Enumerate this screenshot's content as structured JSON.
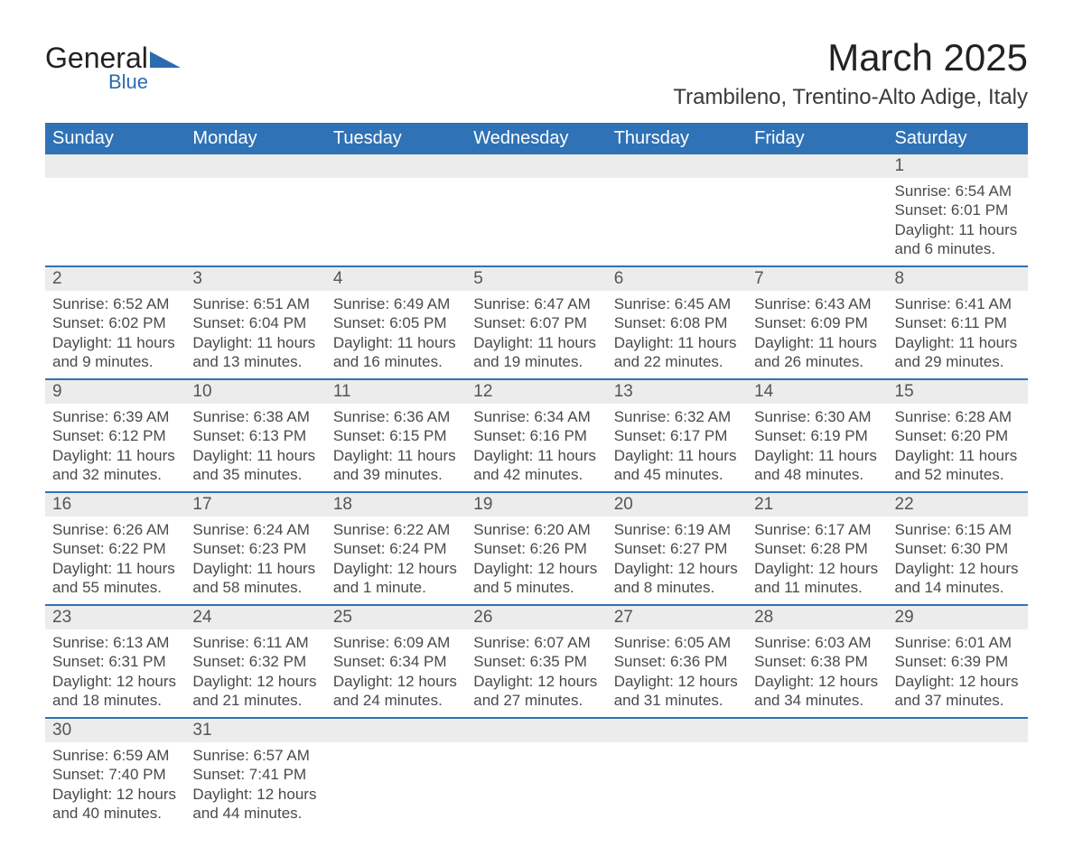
{
  "logo": {
    "text1": "General",
    "text2": "Blue"
  },
  "title": "March 2025",
  "location": "Trambileno, Trentino-Alto Adige, Italy",
  "colors": {
    "header_bg": "#2f72b6",
    "header_fg": "#ffffff",
    "daynum_bg": "#ececec",
    "row_border": "#2f72b6",
    "body_text": "#4a4a4a",
    "title_text": "#222222",
    "logo_accent": "#2b6cb0",
    "page_bg": "#ffffff"
  },
  "typography": {
    "title_fontsize": 42,
    "location_fontsize": 24,
    "header_fontsize": 20,
    "daynum_fontsize": 19,
    "body_fontsize": 17
  },
  "weekdays": [
    "Sunday",
    "Monday",
    "Tuesday",
    "Wednesday",
    "Thursday",
    "Friday",
    "Saturday"
  ],
  "weeks": [
    [
      null,
      null,
      null,
      null,
      null,
      null,
      {
        "n": "1",
        "sr": "Sunrise: 6:54 AM",
        "ss": "Sunset: 6:01 PM",
        "d1": "Daylight: 11 hours",
        "d2": "and 6 minutes."
      }
    ],
    [
      {
        "n": "2",
        "sr": "Sunrise: 6:52 AM",
        "ss": "Sunset: 6:02 PM",
        "d1": "Daylight: 11 hours",
        "d2": "and 9 minutes."
      },
      {
        "n": "3",
        "sr": "Sunrise: 6:51 AM",
        "ss": "Sunset: 6:04 PM",
        "d1": "Daylight: 11 hours",
        "d2": "and 13 minutes."
      },
      {
        "n": "4",
        "sr": "Sunrise: 6:49 AM",
        "ss": "Sunset: 6:05 PM",
        "d1": "Daylight: 11 hours",
        "d2": "and 16 minutes."
      },
      {
        "n": "5",
        "sr": "Sunrise: 6:47 AM",
        "ss": "Sunset: 6:07 PM",
        "d1": "Daylight: 11 hours",
        "d2": "and 19 minutes."
      },
      {
        "n": "6",
        "sr": "Sunrise: 6:45 AM",
        "ss": "Sunset: 6:08 PM",
        "d1": "Daylight: 11 hours",
        "d2": "and 22 minutes."
      },
      {
        "n": "7",
        "sr": "Sunrise: 6:43 AM",
        "ss": "Sunset: 6:09 PM",
        "d1": "Daylight: 11 hours",
        "d2": "and 26 minutes."
      },
      {
        "n": "8",
        "sr": "Sunrise: 6:41 AM",
        "ss": "Sunset: 6:11 PM",
        "d1": "Daylight: 11 hours",
        "d2": "and 29 minutes."
      }
    ],
    [
      {
        "n": "9",
        "sr": "Sunrise: 6:39 AM",
        "ss": "Sunset: 6:12 PM",
        "d1": "Daylight: 11 hours",
        "d2": "and 32 minutes."
      },
      {
        "n": "10",
        "sr": "Sunrise: 6:38 AM",
        "ss": "Sunset: 6:13 PM",
        "d1": "Daylight: 11 hours",
        "d2": "and 35 minutes."
      },
      {
        "n": "11",
        "sr": "Sunrise: 6:36 AM",
        "ss": "Sunset: 6:15 PM",
        "d1": "Daylight: 11 hours",
        "d2": "and 39 minutes."
      },
      {
        "n": "12",
        "sr": "Sunrise: 6:34 AM",
        "ss": "Sunset: 6:16 PM",
        "d1": "Daylight: 11 hours",
        "d2": "and 42 minutes."
      },
      {
        "n": "13",
        "sr": "Sunrise: 6:32 AM",
        "ss": "Sunset: 6:17 PM",
        "d1": "Daylight: 11 hours",
        "d2": "and 45 minutes."
      },
      {
        "n": "14",
        "sr": "Sunrise: 6:30 AM",
        "ss": "Sunset: 6:19 PM",
        "d1": "Daylight: 11 hours",
        "d2": "and 48 minutes."
      },
      {
        "n": "15",
        "sr": "Sunrise: 6:28 AM",
        "ss": "Sunset: 6:20 PM",
        "d1": "Daylight: 11 hours",
        "d2": "and 52 minutes."
      }
    ],
    [
      {
        "n": "16",
        "sr": "Sunrise: 6:26 AM",
        "ss": "Sunset: 6:22 PM",
        "d1": "Daylight: 11 hours",
        "d2": "and 55 minutes."
      },
      {
        "n": "17",
        "sr": "Sunrise: 6:24 AM",
        "ss": "Sunset: 6:23 PM",
        "d1": "Daylight: 11 hours",
        "d2": "and 58 minutes."
      },
      {
        "n": "18",
        "sr": "Sunrise: 6:22 AM",
        "ss": "Sunset: 6:24 PM",
        "d1": "Daylight: 12 hours",
        "d2": "and 1 minute."
      },
      {
        "n": "19",
        "sr": "Sunrise: 6:20 AM",
        "ss": "Sunset: 6:26 PM",
        "d1": "Daylight: 12 hours",
        "d2": "and 5 minutes."
      },
      {
        "n": "20",
        "sr": "Sunrise: 6:19 AM",
        "ss": "Sunset: 6:27 PM",
        "d1": "Daylight: 12 hours",
        "d2": "and 8 minutes."
      },
      {
        "n": "21",
        "sr": "Sunrise: 6:17 AM",
        "ss": "Sunset: 6:28 PM",
        "d1": "Daylight: 12 hours",
        "d2": "and 11 minutes."
      },
      {
        "n": "22",
        "sr": "Sunrise: 6:15 AM",
        "ss": "Sunset: 6:30 PM",
        "d1": "Daylight: 12 hours",
        "d2": "and 14 minutes."
      }
    ],
    [
      {
        "n": "23",
        "sr": "Sunrise: 6:13 AM",
        "ss": "Sunset: 6:31 PM",
        "d1": "Daylight: 12 hours",
        "d2": "and 18 minutes."
      },
      {
        "n": "24",
        "sr": "Sunrise: 6:11 AM",
        "ss": "Sunset: 6:32 PM",
        "d1": "Daylight: 12 hours",
        "d2": "and 21 minutes."
      },
      {
        "n": "25",
        "sr": "Sunrise: 6:09 AM",
        "ss": "Sunset: 6:34 PM",
        "d1": "Daylight: 12 hours",
        "d2": "and 24 minutes."
      },
      {
        "n": "26",
        "sr": "Sunrise: 6:07 AM",
        "ss": "Sunset: 6:35 PM",
        "d1": "Daylight: 12 hours",
        "d2": "and 27 minutes."
      },
      {
        "n": "27",
        "sr": "Sunrise: 6:05 AM",
        "ss": "Sunset: 6:36 PM",
        "d1": "Daylight: 12 hours",
        "d2": "and 31 minutes."
      },
      {
        "n": "28",
        "sr": "Sunrise: 6:03 AM",
        "ss": "Sunset: 6:38 PM",
        "d1": "Daylight: 12 hours",
        "d2": "and 34 minutes."
      },
      {
        "n": "29",
        "sr": "Sunrise: 6:01 AM",
        "ss": "Sunset: 6:39 PM",
        "d1": "Daylight: 12 hours",
        "d2": "and 37 minutes."
      }
    ],
    [
      {
        "n": "30",
        "sr": "Sunrise: 6:59 AM",
        "ss": "Sunset: 7:40 PM",
        "d1": "Daylight: 12 hours",
        "d2": "and 40 minutes."
      },
      {
        "n": "31",
        "sr": "Sunrise: 6:57 AM",
        "ss": "Sunset: 7:41 PM",
        "d1": "Daylight: 12 hours",
        "d2": "and 44 minutes."
      },
      null,
      null,
      null,
      null,
      null
    ]
  ]
}
